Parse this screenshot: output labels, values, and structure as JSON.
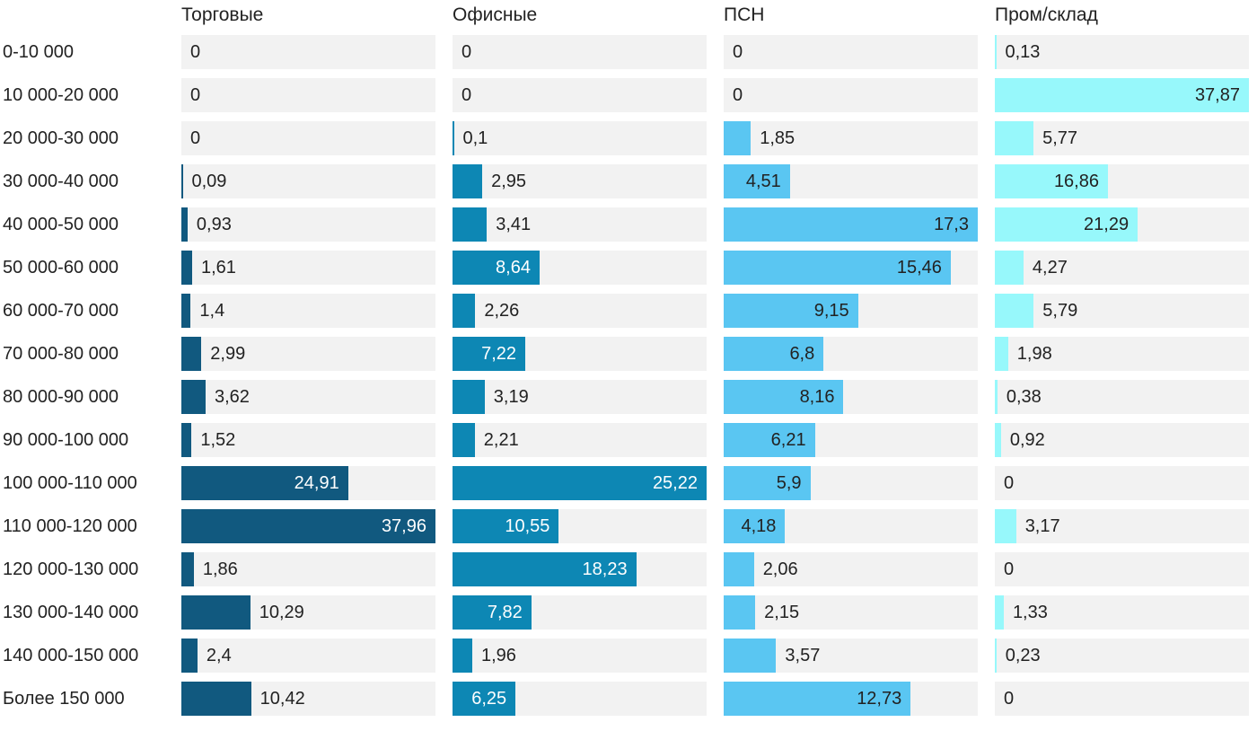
{
  "chart_data": {
    "type": "bar",
    "orientation": "horizontal",
    "title": "",
    "xlabel": "",
    "ylabel": "",
    "grid": false,
    "legend_position": "column-headers-top",
    "normalization": "each column is scaled independently to its own maximum value (bar track = 100%)",
    "track_color": "#F2F2F2",
    "text_color": "#222222",
    "categories": [
      "0-10 000",
      "10 000-20 000",
      "20 000-30 000",
      "30 000-40 000",
      "40 000-50 000",
      "50 000-60 000",
      "60 000-70 000",
      "70 000-80 000",
      "80 000-90 000",
      "90 000-100 000",
      "100 000-110 000",
      "110 000-120 000",
      "120 000-130 000",
      "130 000-140 000",
      "140 000-150 000",
      "Более 150 000"
    ],
    "series": [
      {
        "name": "Торговые",
        "color": "#11597F",
        "inside_label_color": "#FFFFFF",
        "values": [
          0,
          0,
          0,
          0.09,
          0.93,
          1.61,
          1.4,
          2.99,
          3.62,
          1.52,
          24.91,
          37.96,
          1.86,
          10.29,
          2.4,
          10.42
        ],
        "labels": [
          "0",
          "0",
          "0",
          "0,09",
          "0,93",
          "1,61",
          "1,4",
          "2,99",
          "3,62",
          "1,52",
          "24,91",
          "37,96",
          "1,86",
          "10,29",
          "2,4",
          "10,42"
        ]
      },
      {
        "name": "Офисные",
        "color": "#0D87B4",
        "inside_label_color": "#FFFFFF",
        "values": [
          0,
          0,
          0.1,
          2.95,
          3.41,
          8.64,
          2.26,
          7.22,
          3.19,
          2.21,
          25.22,
          10.55,
          18.23,
          7.82,
          1.96,
          6.25
        ],
        "labels": [
          "0",
          "0",
          "0,1",
          "2,95",
          "3,41",
          "8,64",
          "2,26",
          "7,22",
          "3,19",
          "2,21",
          "25,22",
          "10,55",
          "18,23",
          "7,82",
          "1,96",
          "6,25"
        ]
      },
      {
        "name": "ПСН",
        "color": "#5AC6F2",
        "inside_label_color": "#222222",
        "values": [
          0,
          0,
          1.85,
          4.51,
          17.3,
          15.46,
          9.15,
          6.8,
          8.16,
          6.21,
          5.9,
          4.18,
          2.06,
          2.15,
          3.57,
          12.73
        ],
        "labels": [
          "0",
          "0",
          "1,85",
          "4,51",
          "17,3",
          "15,46",
          "9,15",
          "6,8",
          "8,16",
          "6,21",
          "5,9",
          "4,18",
          "2,06",
          "2,15",
          "3,57",
          "12,73"
        ]
      },
      {
        "name": "Пром/склад",
        "color": "#97F8FB",
        "inside_label_color": "#222222",
        "values": [
          0.13,
          37.87,
          5.77,
          16.86,
          21.29,
          4.27,
          5.79,
          1.98,
          0.38,
          0.92,
          0,
          3.17,
          0,
          1.33,
          0.23,
          0
        ],
        "labels": [
          "0,13",
          "37,87",
          "5,77",
          "16,86",
          "21,29",
          "4,27",
          "5,79",
          "1,98",
          "0,38",
          "0,92",
          "0",
          "3,17",
          "0",
          "1,33",
          "0,23",
          "0"
        ]
      }
    ]
  }
}
